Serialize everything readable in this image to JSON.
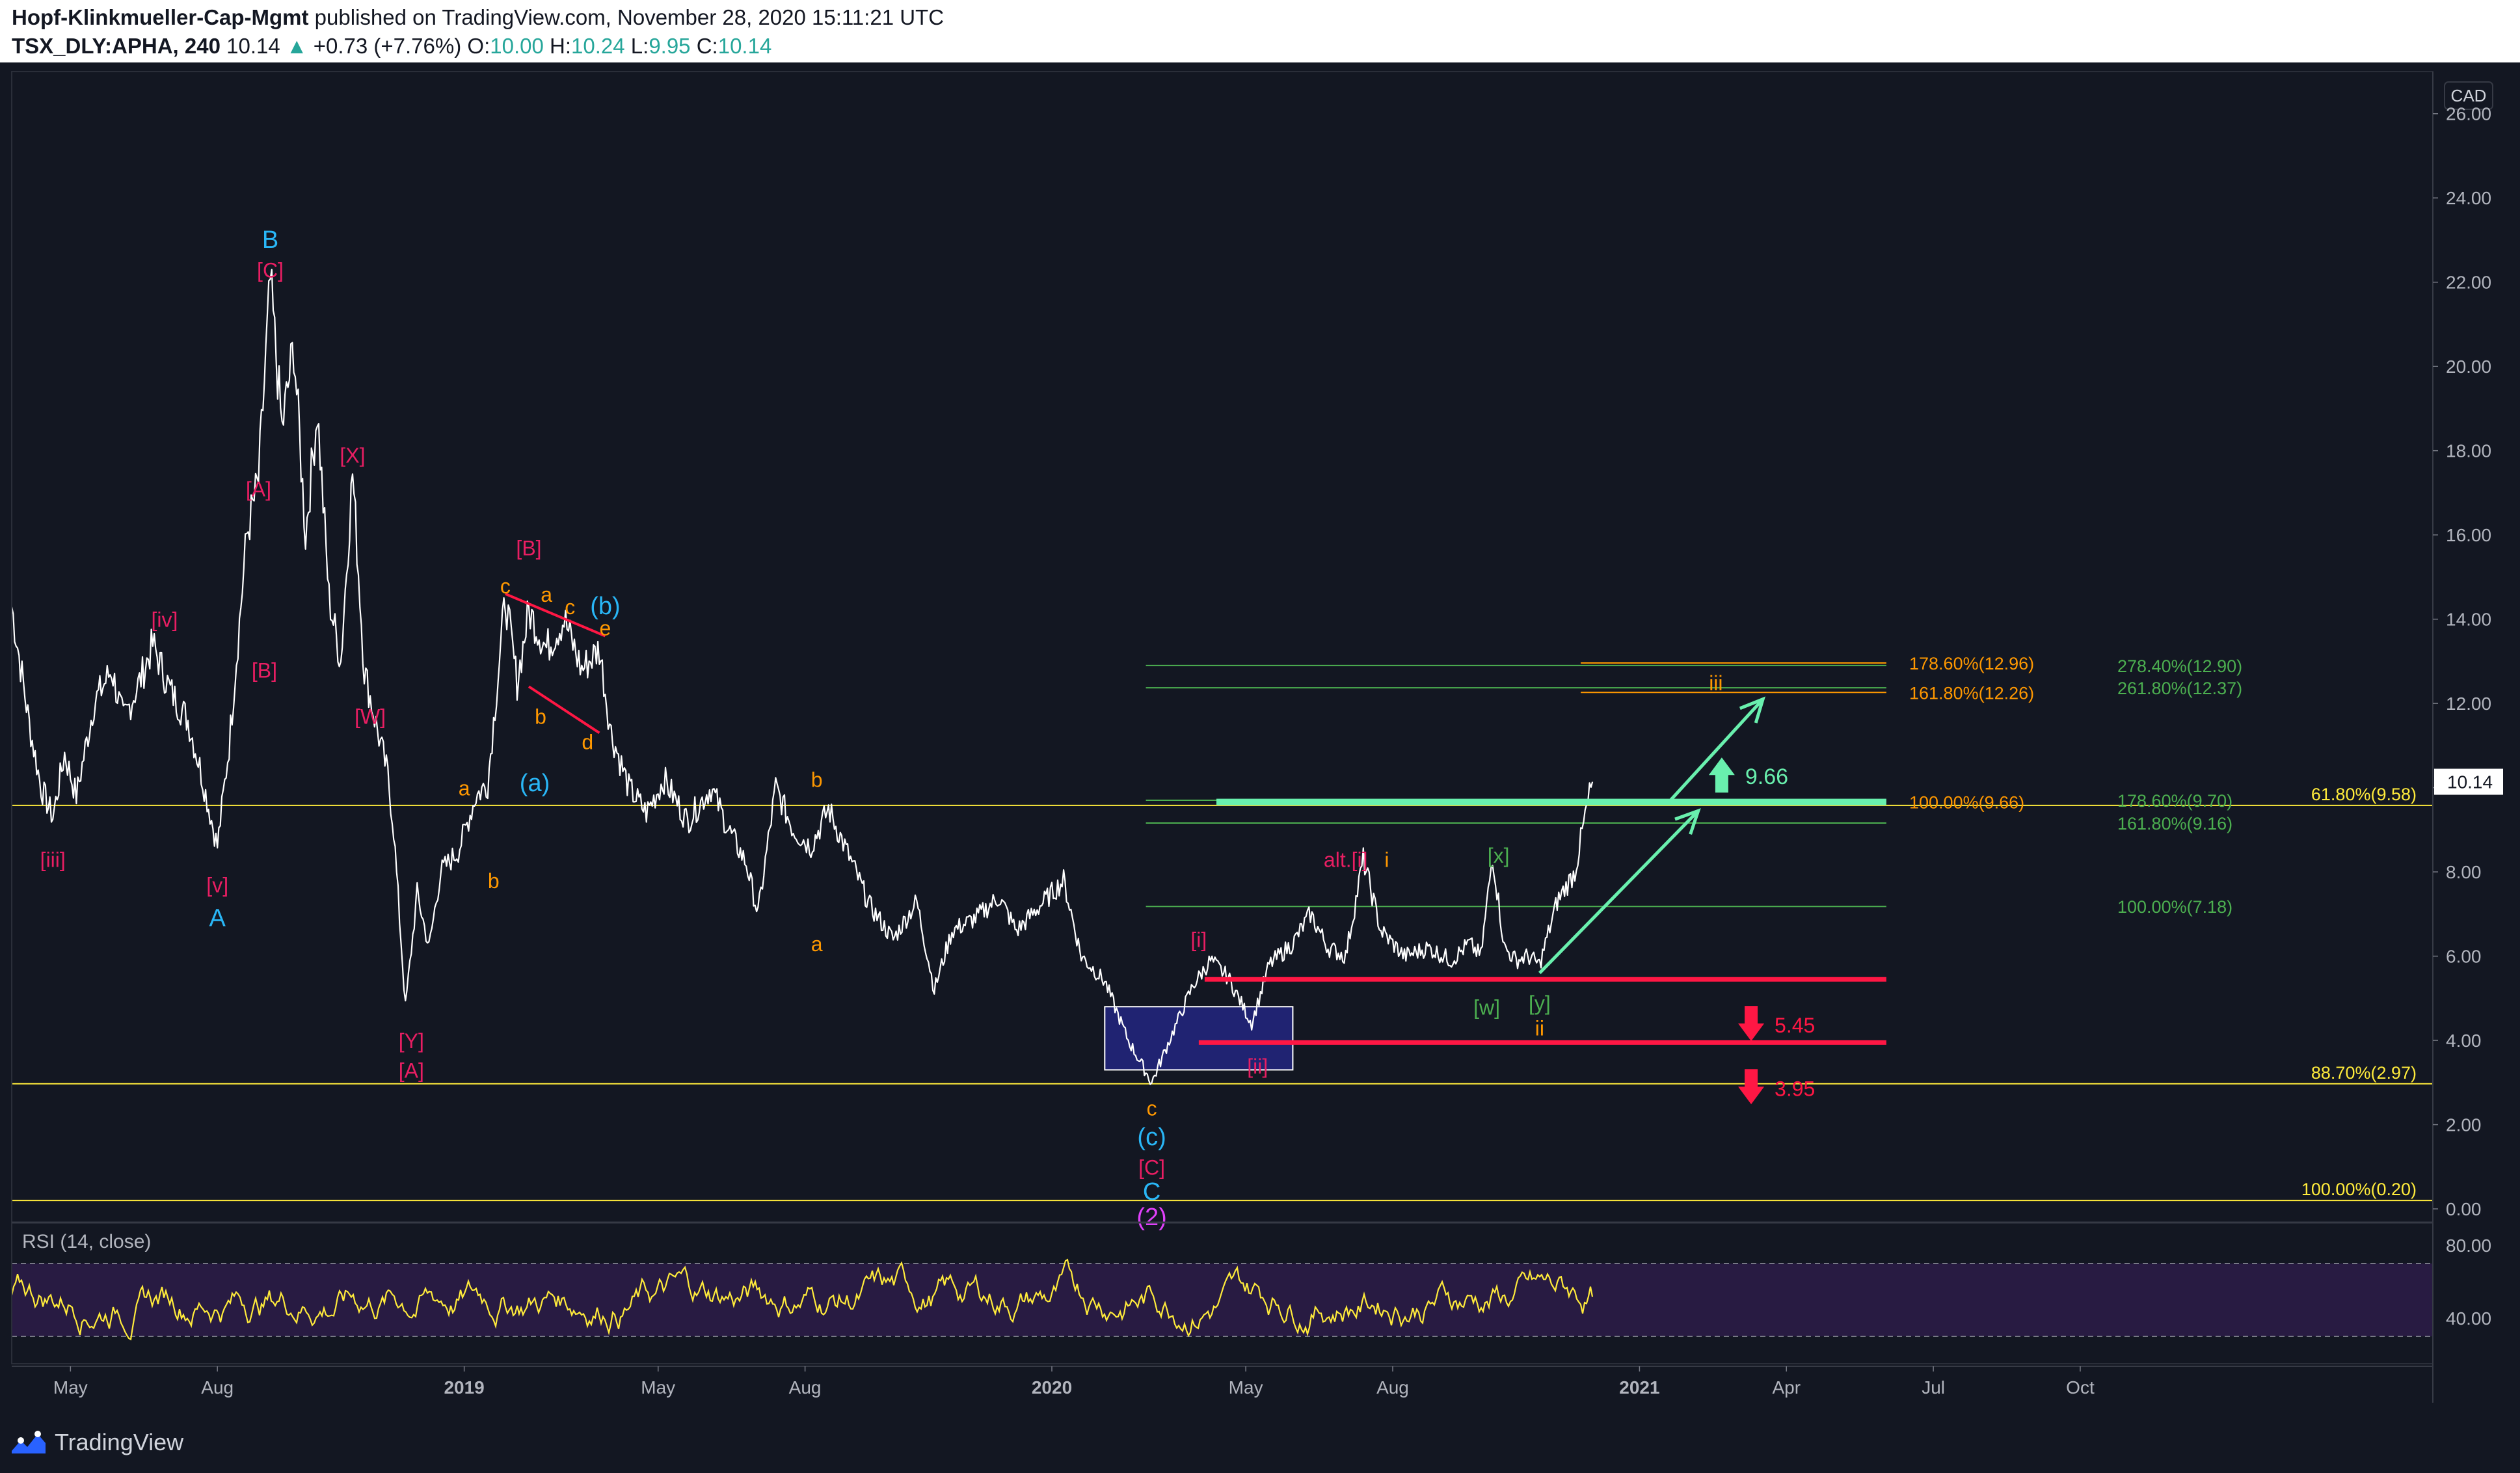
{
  "header": {
    "author": "Hopf-Klinkmueller-Cap-Mgmt",
    "published_text": "published on TradingView.com, November 28, 2020 15:11:21 UTC",
    "symbol": "TSX_DLY:APHA, 240",
    "last": "10.14",
    "change": "+0.73 (+7.76%)",
    "o_label": "O:",
    "o": "10.00",
    "h_label": "H:",
    "h": "10.24",
    "l_label": "L:",
    "l": "9.95",
    "c_label": "C:",
    "c": "10.14"
  },
  "footer": {
    "brand": "TradingView"
  },
  "colors": {
    "background": "#131722",
    "price": "#ffffff",
    "green": "#4caf50",
    "bright_green": "#69f0ae",
    "yellow": "#ffeb3b",
    "orange": "#ff9800",
    "red": "#ff1744",
    "pink": "#e91e63",
    "cyan": "#29b6f6",
    "magenta": "#e040fb",
    "rsi": "#ffeb3b",
    "box": "#2a2ba8"
  },
  "chart_data": {
    "type": "line",
    "currency": "CAD",
    "last_price": "10.14",
    "y_ticks": [
      "0.00",
      "2.00",
      "4.00",
      "6.00",
      "8.00",
      "10.00",
      "12.00",
      "14.00",
      "16.00",
      "18.00",
      "20.00",
      "22.00",
      "24.00",
      "26.00"
    ],
    "ylim": [
      -0.2,
      27.0
    ],
    "x_ticks": [
      {
        "label": "May",
        "x": 2018.33
      },
      {
        "label": "Aug",
        "x": 2018.58
      },
      {
        "label": "2019",
        "x": 2019.0
      },
      {
        "label": "May",
        "x": 2019.33
      },
      {
        "label": "Aug",
        "x": 2019.58
      },
      {
        "label": "2020",
        "x": 2020.0
      },
      {
        "label": "May",
        "x": 2020.33
      },
      {
        "label": "Aug",
        "x": 2020.58
      },
      {
        "label": "2021",
        "x": 2021.0
      },
      {
        "label": "Apr",
        "x": 2021.25
      },
      {
        "label": "Jul",
        "x": 2021.5
      },
      {
        "label": "Oct",
        "x": 2021.75
      }
    ],
    "xlim": [
      2018.23,
      2022.35
    ],
    "price_keypoints": [
      [
        2018.23,
        14.3
      ],
      [
        2018.26,
        11.5
      ],
      [
        2018.28,
        10.0
      ],
      [
        2018.3,
        9.3
      ],
      [
        2018.32,
        10.8
      ],
      [
        2018.34,
        9.8
      ],
      [
        2018.37,
        12.0
      ],
      [
        2018.4,
        12.8
      ],
      [
        2018.42,
        11.6
      ],
      [
        2018.45,
        12.6
      ],
      [
        2018.47,
        13.4
      ],
      [
        2018.5,
        12.3
      ],
      [
        2018.53,
        11.6
      ],
      [
        2018.55,
        10.5
      ],
      [
        2018.58,
        8.6
      ],
      [
        2018.6,
        11.0
      ],
      [
        2018.63,
        16.0
      ],
      [
        2018.65,
        17.3
      ],
      [
        2018.67,
        22.0
      ],
      [
        2018.69,
        18.5
      ],
      [
        2018.71,
        20.5
      ],
      [
        2018.73,
        16.0
      ],
      [
        2018.75,
        19.0
      ],
      [
        2018.77,
        14.5
      ],
      [
        2018.79,
        13.0
      ],
      [
        2018.81,
        17.5
      ],
      [
        2018.83,
        12.8
      ],
      [
        2018.85,
        11.5
      ],
      [
        2018.87,
        10.3
      ],
      [
        2018.88,
        9.0
      ],
      [
        2018.9,
        4.8
      ],
      [
        2018.92,
        7.5
      ],
      [
        2018.94,
        6.2
      ],
      [
        2018.96,
        8.0
      ],
      [
        2018.99,
        8.5
      ],
      [
        2019.02,
        9.8
      ],
      [
        2019.04,
        10.1
      ],
      [
        2019.07,
        14.5
      ],
      [
        2019.09,
        12.5
      ],
      [
        2019.11,
        14.2
      ],
      [
        2019.14,
        13.3
      ],
      [
        2019.17,
        14.0
      ],
      [
        2019.2,
        12.8
      ],
      [
        2019.23,
        13.3
      ],
      [
        2019.25,
        11.3
      ],
      [
        2019.28,
        10.0
      ],
      [
        2019.31,
        9.4
      ],
      [
        2019.34,
        10.2
      ],
      [
        2019.38,
        9.2
      ],
      [
        2019.42,
        10.0
      ],
      [
        2019.45,
        9.0
      ],
      [
        2019.48,
        8.2
      ],
      [
        2019.5,
        7.0
      ],
      [
        2019.53,
        10.0
      ],
      [
        2019.56,
        9.0
      ],
      [
        2019.59,
        8.6
      ],
      [
        2019.62,
        9.5
      ],
      [
        2019.66,
        8.2
      ],
      [
        2019.69,
        7.2
      ],
      [
        2019.73,
        6.4
      ],
      [
        2019.77,
        7.3
      ],
      [
        2019.8,
        5.2
      ],
      [
        2019.83,
        6.6
      ],
      [
        2019.87,
        6.9
      ],
      [
        2019.91,
        7.4
      ],
      [
        2019.94,
        6.6
      ],
      [
        2019.98,
        7.2
      ],
      [
        2020.02,
        7.8
      ],
      [
        2020.05,
        6.0
      ],
      [
        2020.09,
        5.4
      ],
      [
        2020.13,
        4.0
      ],
      [
        2020.17,
        3.0
      ],
      [
        2020.2,
        4.0
      ],
      [
        2020.24,
        5.3
      ],
      [
        2020.27,
        5.9
      ],
      [
        2020.3,
        5.5
      ],
      [
        2020.34,
        4.4
      ],
      [
        2020.37,
        5.8
      ],
      [
        2020.41,
        6.3
      ],
      [
        2020.44,
        7.0
      ],
      [
        2020.47,
        6.2
      ],
      [
        2020.5,
        6.0
      ],
      [
        2020.53,
        8.3
      ],
      [
        2020.56,
        6.6
      ],
      [
        2020.6,
        6.0
      ],
      [
        2020.64,
        6.2
      ],
      [
        2020.68,
        5.9
      ],
      [
        2020.71,
        6.3
      ],
      [
        2020.73,
        6.0
      ],
      [
        2020.75,
        8.4
      ],
      [
        2020.77,
        6.2
      ],
      [
        2020.79,
        5.9
      ],
      [
        2020.81,
        6.0
      ],
      [
        2020.83,
        5.8
      ],
      [
        2020.86,
        7.3
      ],
      [
        2020.89,
        8.0
      ],
      [
        2020.91,
        9.5
      ],
      [
        2020.92,
        10.14
      ]
    ],
    "horizontal_levels": [
      {
        "price": 9.58,
        "label": "61.80%(9.58)",
        "color": "#ffeb3b"
      },
      {
        "price": 2.97,
        "label": "88.70%(2.97)",
        "color": "#ffeb3b"
      },
      {
        "price": 0.2,
        "label": "100.00%(0.20)",
        "color": "#ffeb3b"
      }
    ],
    "fib_green": [
      {
        "price": 12.9,
        "label": "278.40%(12.90)"
      },
      {
        "price": 12.37,
        "label": "261.80%(12.37)"
      },
      {
        "price": 9.7,
        "label": "178.60%(9.70)"
      },
      {
        "price": 9.16,
        "label": "161.80%(9.16)"
      },
      {
        "price": 7.18,
        "label": "100.00%(7.18)"
      }
    ],
    "fib_orange": [
      {
        "price": 12.96,
        "label": "178.60%(12.96)"
      },
      {
        "price": 12.26,
        "label": "161.80%(12.26)"
      },
      {
        "price": 9.66,
        "label": "100.00%(9.66)"
      }
    ],
    "targets": {
      "up": "9.66",
      "down1": "5.45",
      "down2": "3.95"
    },
    "wave_labels": [
      {
        "t": "B",
        "x": 2018.67,
        "y": 23.0,
        "c": "cyan"
      },
      {
        "t": "[C]",
        "x": 2018.67,
        "y": 22.3,
        "c": "pink"
      },
      {
        "t": "[A]",
        "x": 2018.65,
        "y": 17.1,
        "c": "pink"
      },
      {
        "t": "[X]",
        "x": 2018.81,
        "y": 17.9,
        "c": "pink"
      },
      {
        "t": "[B]",
        "x": 2018.66,
        "y": 12.8,
        "c": "pink"
      },
      {
        "t": "[W]",
        "x": 2018.84,
        "y": 11.7,
        "c": "pink"
      },
      {
        "t": "[iv]",
        "x": 2018.49,
        "y": 14.0,
        "c": "pink"
      },
      {
        "t": "[iii]",
        "x": 2018.3,
        "y": 8.3,
        "c": "pink"
      },
      {
        "t": "[v]",
        "x": 2018.58,
        "y": 7.7,
        "c": "pink"
      },
      {
        "t": "A",
        "x": 2018.58,
        "y": 6.9,
        "c": "cyan"
      },
      {
        "t": "[Y]",
        "x": 2018.91,
        "y": 4.0,
        "c": "pink"
      },
      {
        "t": "[A]",
        "x": 2018.91,
        "y": 3.3,
        "c": "pink"
      },
      {
        "t": "[B]",
        "x": 2019.11,
        "y": 15.7,
        "c": "pink"
      },
      {
        "t": "c",
        "x": 2019.07,
        "y": 14.8,
        "c": "orange"
      },
      {
        "t": "a",
        "x": 2019.14,
        "y": 14.6,
        "c": "orange"
      },
      {
        "t": "c",
        "x": 2019.18,
        "y": 14.3,
        "c": "orange"
      },
      {
        "t": "(b)",
        "x": 2019.24,
        "y": 14.3,
        "c": "cyan"
      },
      {
        "t": "e",
        "x": 2019.24,
        "y": 13.8,
        "c": "orange"
      },
      {
        "t": "b",
        "x": 2019.13,
        "y": 11.7,
        "c": "orange"
      },
      {
        "t": "d",
        "x": 2019.21,
        "y": 11.1,
        "c": "orange"
      },
      {
        "t": "a",
        "x": 2019.0,
        "y": 10.0,
        "c": "orange"
      },
      {
        "t": "(a)",
        "x": 2019.12,
        "y": 10.1,
        "c": "cyan"
      },
      {
        "t": "b",
        "x": 2019.05,
        "y": 7.8,
        "c": "orange"
      },
      {
        "t": "b",
        "x": 2019.6,
        "y": 10.2,
        "c": "orange"
      },
      {
        "t": "a",
        "x": 2019.6,
        "y": 6.3,
        "c": "orange"
      },
      {
        "t": "[i]",
        "x": 2020.25,
        "y": 6.4,
        "c": "pink"
      },
      {
        "t": "[ii]",
        "x": 2020.35,
        "y": 3.4,
        "c": "pink"
      },
      {
        "t": "c",
        "x": 2020.17,
        "y": 2.4,
        "c": "orange"
      },
      {
        "t": "(c)",
        "x": 2020.17,
        "y": 1.7,
        "c": "cyan"
      },
      {
        "t": "[C]",
        "x": 2020.17,
        "y": 1.0,
        "c": "pink"
      },
      {
        "t": "C",
        "x": 2020.17,
        "y": 0.4,
        "c": "cyan"
      },
      {
        "t": "(2)",
        "x": 2020.17,
        "y": -0.2,
        "c": "magenta"
      },
      {
        "t": "alt.[i]",
        "x": 2020.5,
        "y": 8.3,
        "c": "pink"
      },
      {
        "t": "i",
        "x": 2020.57,
        "y": 8.3,
        "c": "orange"
      },
      {
        "t": "[x]",
        "x": 2020.76,
        "y": 8.4,
        "c": "green"
      },
      {
        "t": "[w]",
        "x": 2020.74,
        "y": 4.8,
        "c": "green"
      },
      {
        "t": "[y]",
        "x": 2020.83,
        "y": 4.9,
        "c": "green"
      },
      {
        "t": "ii",
        "x": 2020.83,
        "y": 4.3,
        "c": "orange"
      },
      {
        "t": "iii",
        "x": 2021.13,
        "y": 12.5,
        "c": "orange"
      }
    ],
    "rsi": {
      "label": "RSI (14, close)",
      "y_ticks": [
        "80.00",
        "40.00"
      ],
      "upper": 70,
      "lower": 30
    }
  }
}
